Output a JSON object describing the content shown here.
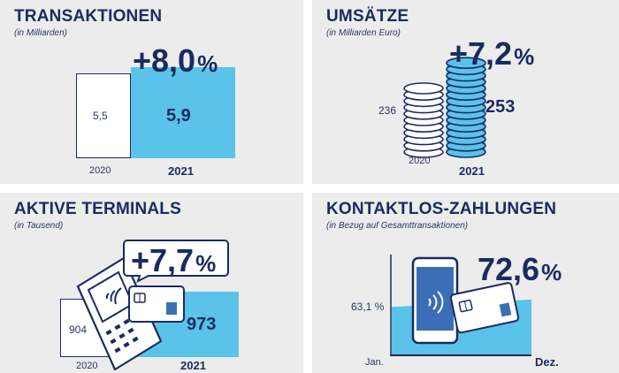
{
  "chart_data": [
    {
      "type": "bar",
      "title": "TRANSAKTIONEN",
      "subtitle": "(in Milliarden)",
      "change": "+8,0",
      "change_unit": "%",
      "categories": [
        "2020",
        "2021"
      ],
      "values": [
        5.5,
        5.9
      ],
      "value_labels": [
        "5,5",
        "5,9"
      ]
    },
    {
      "type": "bar",
      "title": "UMSÄTZE",
      "subtitle": "(in Milliarden Euro)",
      "change": "+7,2",
      "change_unit": "%",
      "categories": [
        "2020",
        "2021"
      ],
      "values": [
        236,
        253
      ],
      "value_labels": [
        "236",
        "253"
      ],
      "icon": "coin-stack-icon"
    },
    {
      "type": "bar",
      "title": "AKTIVE TERMINALS",
      "subtitle": "(in Tausend)",
      "change": "+7,7",
      "change_unit": "%",
      "categories": [
        "2020",
        "2021"
      ],
      "values": [
        904,
        973
      ],
      "value_labels": [
        "904",
        "973"
      ],
      "icon": "card-terminal-icon"
    },
    {
      "type": "area",
      "title": "KONTAKTLOS-ZAHLUNGEN",
      "subtitle": "(in Bezug auf Gesamttransaktionen)",
      "change": "72,6",
      "change_unit": "%",
      "categories": [
        "Jan.",
        "Dez."
      ],
      "values": [
        63.1,
        72.6
      ],
      "value_labels": [
        "63,1 %",
        ""
      ],
      "icon": "smartphone-contactless-icon"
    }
  ],
  "colors": {
    "accent": "#5bc2ea",
    "navy": "#1a2b5f",
    "panel": "#ececec"
  }
}
